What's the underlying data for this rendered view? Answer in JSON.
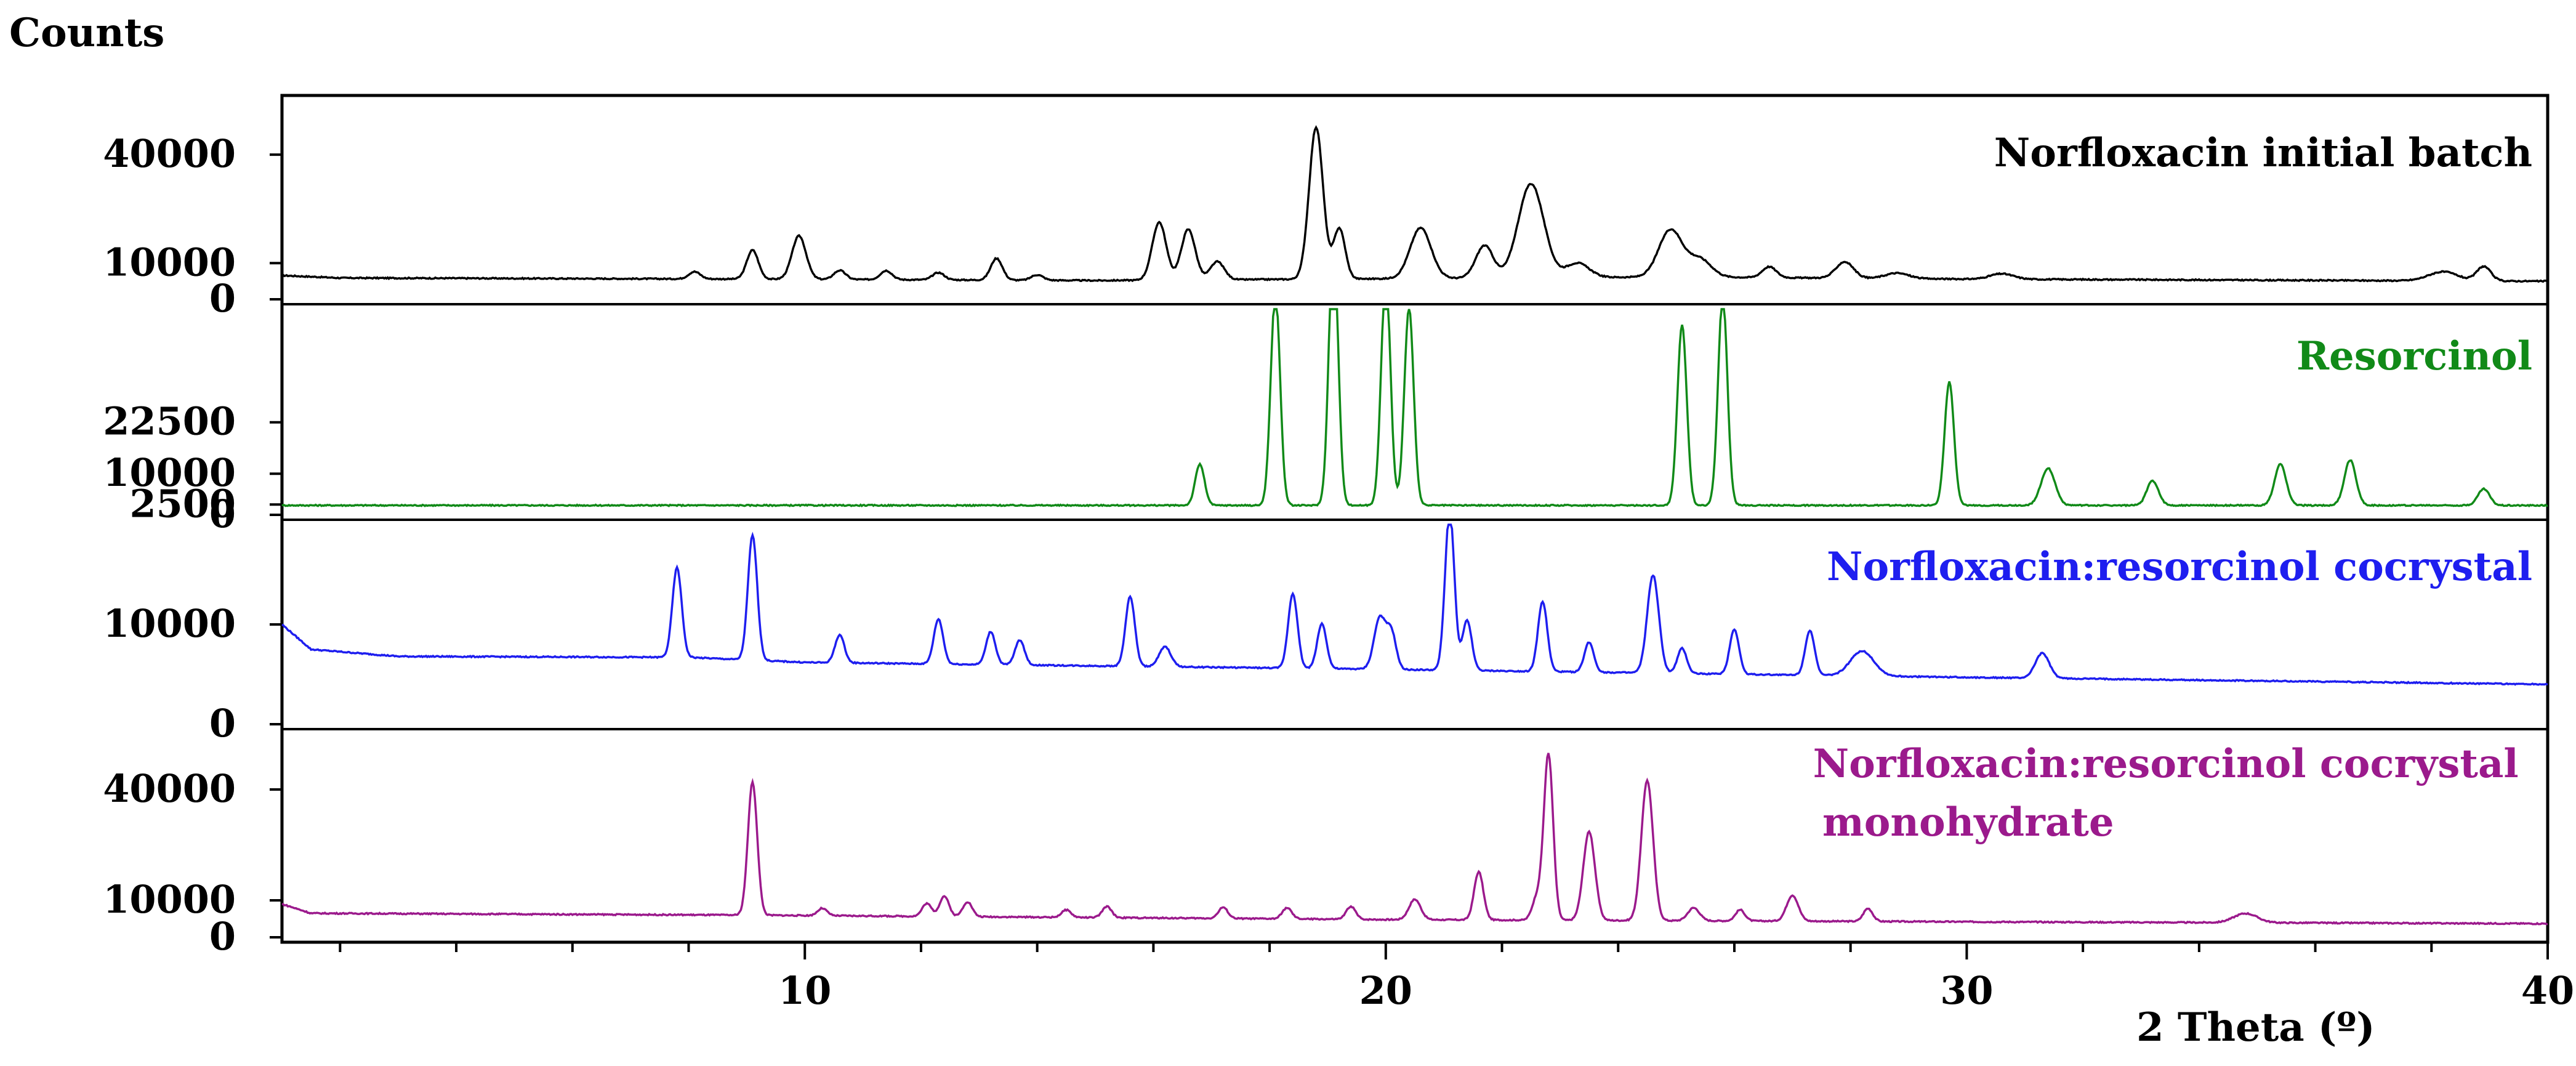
{
  "chart_data": [
    {
      "type": "line",
      "y_axis_title": "Counts",
      "x_axis_title": "2 Theta (º)",
      "xlim": [
        1,
        40
      ],
      "x_ticks": [
        10,
        20,
        30,
        40
      ],
      "x_tick_labels": [
        "10",
        "20",
        "30",
        "40"
      ],
      "grid": false,
      "legend": "series labels printed inside each panel, right-aligned",
      "panels": [
        {
          "series": [
            {
              "name": "Norfloxacin initial batch",
              "color": "#000000"
            }
          ],
          "ylim": [
            0,
            55000
          ],
          "y_ticks": [
            0,
            10000,
            40000
          ],
          "y_tick_labels": [
            "0",
            "10000",
            "40000"
          ],
          "baseline": [
            [
              1,
              6600
            ],
            [
              2,
              5900
            ],
            [
              9,
              5600
            ],
            [
              15,
              5200
            ],
            [
              25,
              6200
            ],
            [
              30,
              5600
            ],
            [
              40,
              5000
            ]
          ],
          "peaks": [
            [
              8.1,
              2000,
              0.1
            ],
            [
              9.1,
              8000,
              0.1
            ],
            [
              9.9,
              12000,
              0.12
            ],
            [
              10.6,
              2500,
              0.1
            ],
            [
              11.4,
              2500,
              0.1
            ],
            [
              12.3,
              2000,
              0.1
            ],
            [
              13.3,
              6000,
              0.1
            ],
            [
              14,
              1500,
              0.1
            ],
            [
              16.1,
              16000,
              0.12
            ],
            [
              16.6,
              14000,
              0.12
            ],
            [
              17.1,
              5000,
              0.12
            ],
            [
              18.8,
              42000,
              0.12
            ],
            [
              19.2,
              14000,
              0.1
            ],
            [
              20.6,
              14000,
              0.18
            ],
            [
              21.7,
              9000,
              0.15
            ],
            [
              22.5,
              26000,
              0.22
            ],
            [
              23.3,
              4000,
              0.2
            ],
            [
              24.9,
              13000,
              0.2
            ],
            [
              25.4,
              5000,
              0.2
            ],
            [
              26.6,
              3000,
              0.12
            ],
            [
              27.9,
              4500,
              0.15
            ],
            [
              28.8,
              1500,
              0.2
            ],
            [
              30.6,
              1500,
              0.2
            ],
            [
              38.2,
              2500,
              0.25
            ],
            [
              38.9,
              4000,
              0.12
            ]
          ]
        },
        {
          "series": [
            {
              "name": "Resorcinol",
              "color": "#118A18"
            }
          ],
          "ylim": [
            0,
            50000
          ],
          "y_ticks": [
            0,
            2500,
            10000,
            22500
          ],
          "y_tick_labels": [
            "0",
            "2500",
            "10000",
            "22500"
          ],
          "baseline": [
            [
              1,
              2300
            ],
            [
              40,
              2300
            ]
          ],
          "peaks": [
            [
              16.8,
              10000,
              0.08
            ],
            [
              18.1,
              52000,
              0.08
            ],
            [
              19.1,
              65000,
              0.08
            ],
            [
              20,
              56000,
              0.08
            ],
            [
              20.4,
              48000,
              0.08
            ],
            [
              25.1,
              44000,
              0.08
            ],
            [
              25.8,
              51000,
              0.08
            ],
            [
              29.7,
              30000,
              0.08
            ],
            [
              31.4,
              9000,
              0.12
            ],
            [
              33.2,
              6000,
              0.1
            ],
            [
              35.4,
              10000,
              0.1
            ],
            [
              36.6,
              11000,
              0.1
            ],
            [
              38.9,
              4000,
              0.1
            ]
          ]
        },
        {
          "series": [
            {
              "name": "Norfloxacin:resorcinol cocrystal",
              "color": "#1E1EEF"
            }
          ],
          "ylim": [
            0,
            20000
          ],
          "y_ticks": [
            0,
            10000
          ],
          "y_tick_labels": [
            "0",
            "10000"
          ],
          "baseline": [
            [
              1,
              10000
            ],
            [
              1.5,
              7500
            ],
            [
              3,
              6800
            ],
            [
              8,
              6700
            ],
            [
              10,
              6200
            ],
            [
              20,
              5500
            ],
            [
              30,
              4700
            ],
            [
              40,
              4000
            ]
          ],
          "peaks": [
            [
              7.8,
              9000,
              0.08
            ],
            [
              9.1,
              12500,
              0.08
            ],
            [
              10.6,
              2800,
              0.08
            ],
            [
              12.3,
              4500,
              0.08
            ],
            [
              13.2,
              3300,
              0.08
            ],
            [
              13.7,
              2500,
              0.08
            ],
            [
              15.6,
              7000,
              0.08
            ],
            [
              16.2,
              2000,
              0.1
            ],
            [
              18.4,
              7500,
              0.08
            ],
            [
              18.9,
              4500,
              0.08
            ],
            [
              19.9,
              5200,
              0.1
            ],
            [
              20.1,
              3500,
              0.08
            ],
            [
              21.1,
              16000,
              0.08
            ],
            [
              21.4,
              5000,
              0.08
            ],
            [
              22.7,
              7000,
              0.08
            ],
            [
              23.5,
              3000,
              0.08
            ],
            [
              24.6,
              9800,
              0.1
            ],
            [
              25.1,
              2500,
              0.08
            ],
            [
              26,
              4500,
              0.08
            ],
            [
              27.3,
              4500,
              0.08
            ],
            [
              28.2,
              2500,
              0.2
            ],
            [
              31.3,
              2500,
              0.12
            ]
          ]
        },
        {
          "series": [
            {
              "name": "Norfloxacin:resorcinol cocrystal monohydrate",
              "color": "#9B1A8C"
            }
          ],
          "ylim": [
            0,
            55000
          ],
          "y_ticks": [
            0,
            10000,
            40000
          ],
          "y_tick_labels": [
            "0",
            "10000",
            "40000"
          ],
          "baseline": [
            [
              1,
              9000
            ],
            [
              1.5,
              6500
            ],
            [
              9,
              6000
            ],
            [
              20,
              4800
            ],
            [
              30,
              4200
            ],
            [
              40,
              3700
            ]
          ],
          "peaks": [
            [
              9.1,
              36000,
              0.08
            ],
            [
              10.3,
              2000,
              0.08
            ],
            [
              12.1,
              3500,
              0.08
            ],
            [
              12.4,
              5500,
              0.08
            ],
            [
              12.8,
              4000,
              0.08
            ],
            [
              14.5,
              2000,
              0.08
            ],
            [
              15.2,
              3000,
              0.08
            ],
            [
              17.2,
              3000,
              0.08
            ],
            [
              18.3,
              3000,
              0.08
            ],
            [
              19.4,
              3500,
              0.08
            ],
            [
              20.5,
              5500,
              0.1
            ],
            [
              21.6,
              13000,
              0.08
            ],
            [
              22.6,
              6000,
              0.08
            ],
            [
              22.8,
              45000,
              0.08
            ],
            [
              23.5,
              24000,
              0.1
            ],
            [
              24.5,
              38000,
              0.1
            ],
            [
              25.3,
              3500,
              0.1
            ],
            [
              26.1,
              3000,
              0.08
            ],
            [
              27,
              7000,
              0.1
            ],
            [
              28.3,
              3500,
              0.08
            ],
            [
              34.8,
              2500,
              0.2
            ]
          ]
        }
      ]
    }
  ]
}
